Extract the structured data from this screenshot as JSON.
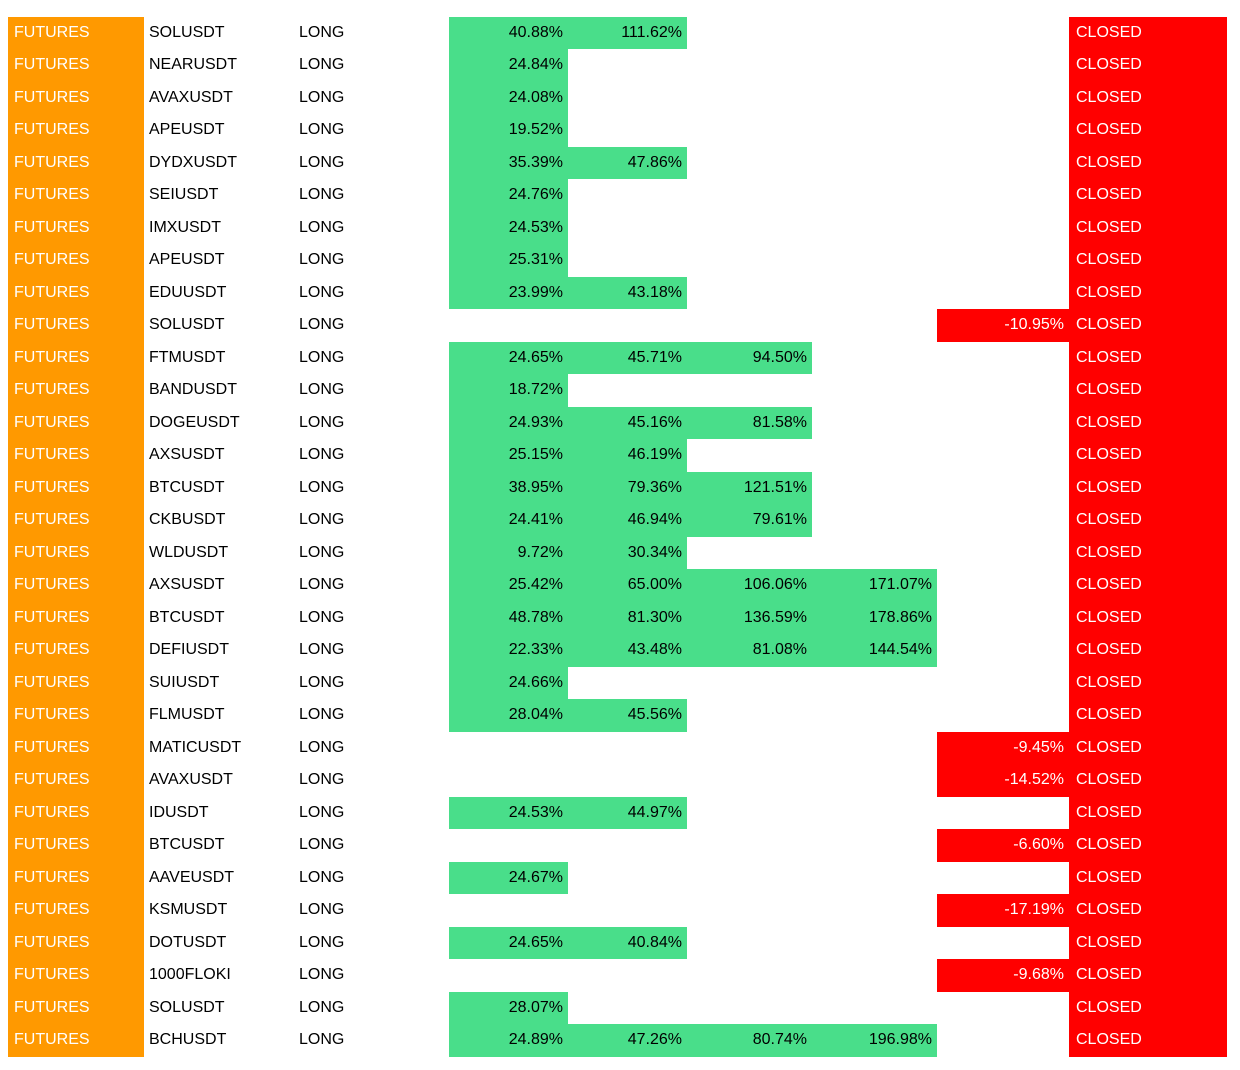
{
  "colors": {
    "type_bg": "#ff9900",
    "profit_bg": "#49de8a",
    "loss_bg": "#ff0000",
    "status_bg": "#ff0000"
  },
  "rows": [
    {
      "type": "FUTURES",
      "symbol": "SOLUSDT",
      "side": "LONG",
      "tp": [
        "40.88%",
        "111.62%",
        "",
        ""
      ],
      "loss": "",
      "status": "CLOSED"
    },
    {
      "type": "FUTURES",
      "symbol": "NEARUSDT",
      "side": "LONG",
      "tp": [
        "24.84%",
        "",
        "",
        ""
      ],
      "loss": "",
      "status": "CLOSED"
    },
    {
      "type": "FUTURES",
      "symbol": "AVAXUSDT",
      "side": "LONG",
      "tp": [
        "24.08%",
        "",
        "",
        ""
      ],
      "loss": "",
      "status": "CLOSED"
    },
    {
      "type": "FUTURES",
      "symbol": "APEUSDT",
      "side": "LONG",
      "tp": [
        "19.52%",
        "",
        "",
        ""
      ],
      "loss": "",
      "status": "CLOSED"
    },
    {
      "type": "FUTURES",
      "symbol": "DYDXUSDT",
      "side": "LONG",
      "tp": [
        "35.39%",
        "47.86%",
        "",
        ""
      ],
      "loss": "",
      "status": "CLOSED"
    },
    {
      "type": "FUTURES",
      "symbol": "SEIUSDT",
      "side": "LONG",
      "tp": [
        "24.76%",
        "",
        "",
        ""
      ],
      "loss": "",
      "status": "CLOSED"
    },
    {
      "type": "FUTURES",
      "symbol": "IMXUSDT",
      "side": "LONG",
      "tp": [
        "24.53%",
        "",
        "",
        ""
      ],
      "loss": "",
      "status": "CLOSED"
    },
    {
      "type": "FUTURES",
      "symbol": "APEUSDT",
      "side": "LONG",
      "tp": [
        "25.31%",
        "",
        "",
        ""
      ],
      "loss": "",
      "status": "CLOSED"
    },
    {
      "type": "FUTURES",
      "symbol": "EDUUSDT",
      "side": "LONG",
      "tp": [
        "23.99%",
        "43.18%",
        "",
        ""
      ],
      "loss": "",
      "status": "CLOSED"
    },
    {
      "type": "FUTURES",
      "symbol": "SOLUSDT",
      "side": "LONG",
      "tp": [
        "",
        "",
        "",
        ""
      ],
      "loss": "-10.95%",
      "status": "CLOSED"
    },
    {
      "type": "FUTURES",
      "symbol": "FTMUSDT",
      "side": "LONG",
      "tp": [
        "24.65%",
        "45.71%",
        "94.50%",
        ""
      ],
      "loss": "",
      "status": "CLOSED"
    },
    {
      "type": "FUTURES",
      "symbol": "BANDUSDT",
      "side": "LONG",
      "tp": [
        "18.72%",
        "",
        "",
        ""
      ],
      "loss": "",
      "status": "CLOSED"
    },
    {
      "type": "FUTURES",
      "symbol": "DOGEUSDT",
      "side": "LONG",
      "tp": [
        "24.93%",
        "45.16%",
        "81.58%",
        ""
      ],
      "loss": "",
      "status": "CLOSED"
    },
    {
      "type": "FUTURES",
      "symbol": "AXSUSDT",
      "side": "LONG",
      "tp": [
        "25.15%",
        "46.19%",
        "",
        ""
      ],
      "loss": "",
      "status": "CLOSED"
    },
    {
      "type": "FUTURES",
      "symbol": "BTCUSDT",
      "side": "LONG",
      "tp": [
        "38.95%",
        "79.36%",
        "121.51%",
        ""
      ],
      "loss": "",
      "status": "CLOSED"
    },
    {
      "type": "FUTURES",
      "symbol": "CKBUSDT",
      "side": "LONG",
      "tp": [
        "24.41%",
        "46.94%",
        "79.61%",
        ""
      ],
      "loss": "",
      "status": "CLOSED"
    },
    {
      "type": "FUTURES",
      "symbol": "WLDUSDT",
      "side": "LONG",
      "tp": [
        "9.72%",
        "30.34%",
        "",
        ""
      ],
      "loss": "",
      "status": "CLOSED"
    },
    {
      "type": "FUTURES",
      "symbol": "AXSUSDT",
      "side": "LONG",
      "tp": [
        "25.42%",
        "65.00%",
        "106.06%",
        "171.07%"
      ],
      "loss": "",
      "status": "CLOSED"
    },
    {
      "type": "FUTURES",
      "symbol": "BTCUSDT",
      "side": "LONG",
      "tp": [
        "48.78%",
        "81.30%",
        "136.59%",
        "178.86%"
      ],
      "loss": "",
      "status": "CLOSED"
    },
    {
      "type": "FUTURES",
      "symbol": "DEFIUSDT",
      "side": "LONG",
      "tp": [
        "22.33%",
        "43.48%",
        "81.08%",
        "144.54%"
      ],
      "loss": "",
      "status": "CLOSED"
    },
    {
      "type": "FUTURES",
      "symbol": "SUIUSDT",
      "side": "LONG",
      "tp": [
        "24.66%",
        "",
        "",
        ""
      ],
      "loss": "",
      "status": "CLOSED"
    },
    {
      "type": "FUTURES",
      "symbol": "FLMUSDT",
      "side": "LONG",
      "tp": [
        "28.04%",
        "45.56%",
        "",
        ""
      ],
      "loss": "",
      "status": "CLOSED"
    },
    {
      "type": "FUTURES",
      "symbol": "MATICUSDT",
      "side": "LONG",
      "tp": [
        "",
        "",
        "",
        ""
      ],
      "loss": "-9.45%",
      "status": "CLOSED"
    },
    {
      "type": "FUTURES",
      "symbol": "AVAXUSDT",
      "side": "LONG",
      "tp": [
        "",
        "",
        "",
        ""
      ],
      "loss": "-14.52%",
      "status": "CLOSED"
    },
    {
      "type": "FUTURES",
      "symbol": "IDUSDT",
      "side": "LONG",
      "tp": [
        "24.53%",
        "44.97%",
        "",
        ""
      ],
      "loss": "",
      "status": "CLOSED"
    },
    {
      "type": "FUTURES",
      "symbol": "BTCUSDT",
      "side": "LONG",
      "tp": [
        "",
        "",
        "",
        ""
      ],
      "loss": "-6.60%",
      "status": "CLOSED"
    },
    {
      "type": "FUTURES",
      "symbol": "AAVEUSDT",
      "side": "LONG",
      "tp": [
        "24.67%",
        "",
        "",
        ""
      ],
      "loss": "",
      "status": "CLOSED"
    },
    {
      "type": "FUTURES",
      "symbol": "KSMUSDT",
      "side": "LONG",
      "tp": [
        "",
        "",
        "",
        ""
      ],
      "loss": "-17.19%",
      "status": "CLOSED"
    },
    {
      "type": "FUTURES",
      "symbol": "DOTUSDT",
      "side": "LONG",
      "tp": [
        "24.65%",
        "40.84%",
        "",
        ""
      ],
      "loss": "",
      "status": "CLOSED"
    },
    {
      "type": "FUTURES",
      "symbol": "1000FLOKI",
      "side": "LONG",
      "tp": [
        "",
        "",
        "",
        ""
      ],
      "loss": "-9.68%",
      "status": "CLOSED"
    },
    {
      "type": "FUTURES",
      "symbol": "SOLUSDT",
      "side": "LONG",
      "tp": [
        "28.07%",
        "",
        "",
        ""
      ],
      "loss": "",
      "status": "CLOSED"
    },
    {
      "type": "FUTURES",
      "symbol": "BCHUSDT",
      "side": "LONG",
      "tp": [
        "24.89%",
        "47.26%",
        "80.74%",
        "196.98%"
      ],
      "loss": "",
      "status": "CLOSED"
    }
  ]
}
